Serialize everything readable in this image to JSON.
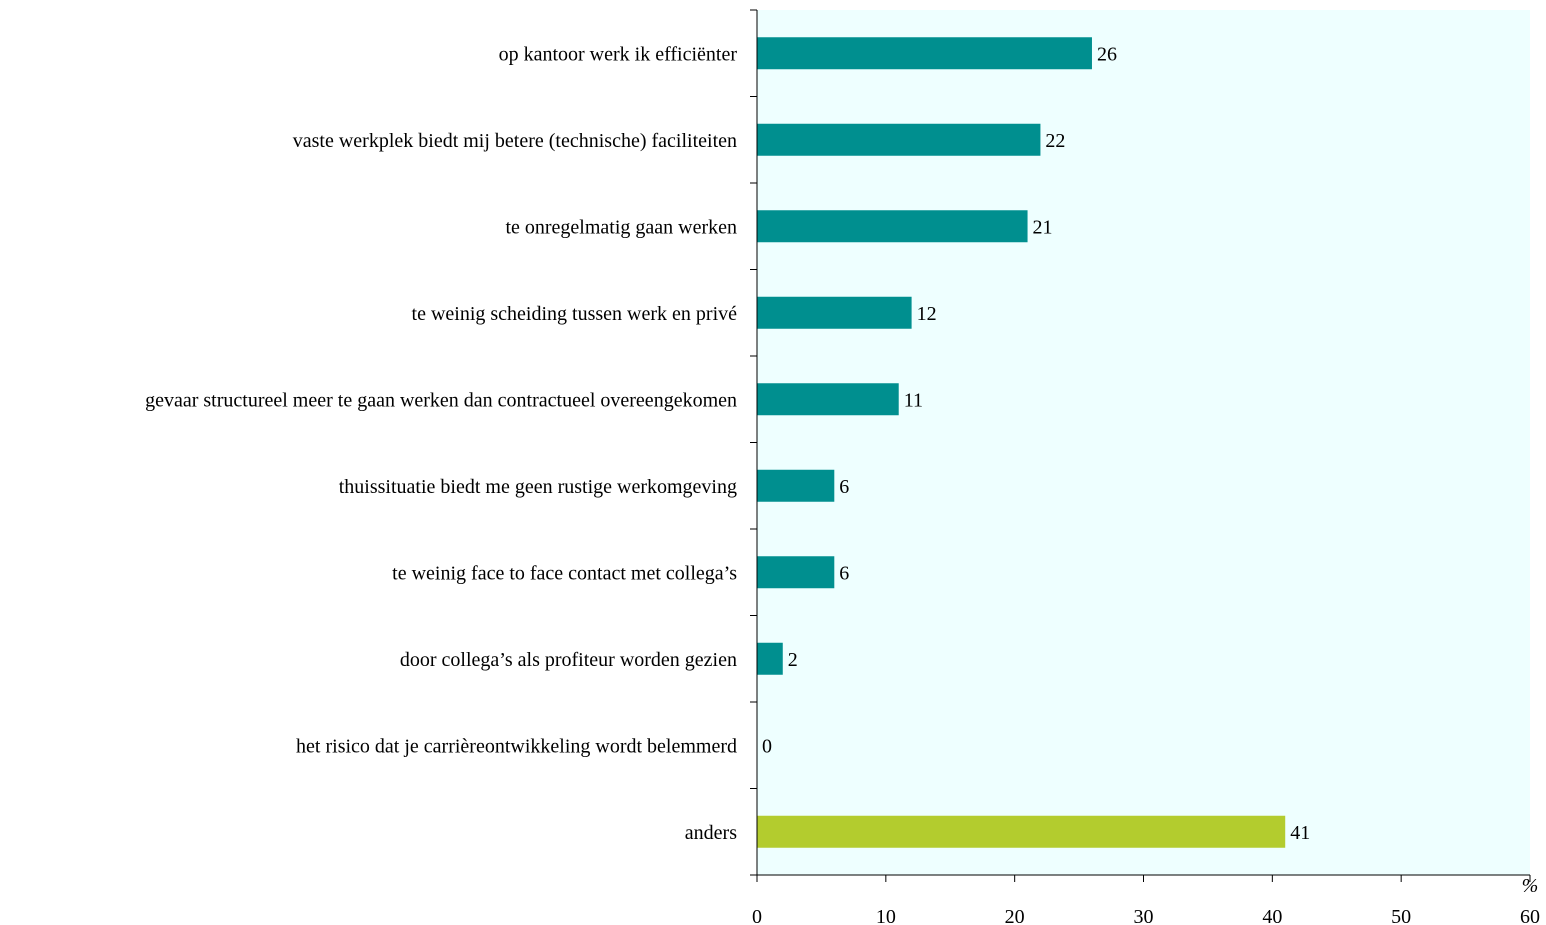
{
  "chart_data": {
    "type": "bar",
    "orientation": "horizontal",
    "categories": [
      "op kantoor werk ik efficiënter",
      "vaste werkplek biedt mij betere (technische) faciliteiten",
      "te onregelmatig gaan werken",
      "te weinig scheiding tussen werk en privé",
      "gevaar structureel  meer te gaan werken dan contractueel overeengekomen",
      "thuissituatie biedt me geen rustige werkomgeving",
      "te weinig face to face contact met collega’s",
      "door collega’s als profiteur worden gezien",
      "het risico dat je carrièreontwikkeling wordt belemmerd",
      "anders"
    ],
    "values": [
      26,
      22,
      21,
      12,
      11,
      6,
      6,
      2,
      0,
      41
    ],
    "bar_colors": [
      "#008F8F",
      "#008F8F",
      "#008F8F",
      "#008F8F",
      "#008F8F",
      "#008F8F",
      "#008F8F",
      "#008F8F",
      "#008F8F",
      "#B3CC2E"
    ],
    "xlim": [
      0,
      60
    ],
    "xticks": [
      0,
      10,
      20,
      30,
      40,
      50,
      60
    ],
    "xlabel": "%",
    "ylabel": "",
    "title": "",
    "grid": false,
    "plot_background": "#EEFFFF"
  }
}
